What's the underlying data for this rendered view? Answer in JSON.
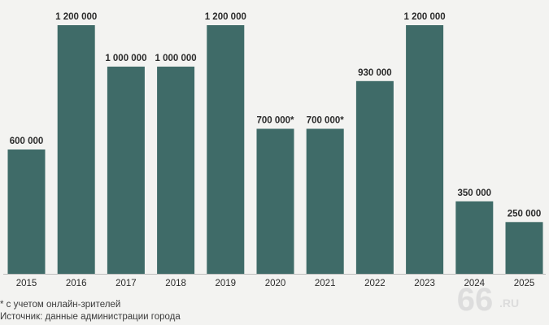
{
  "chart_data": {
    "type": "bar",
    "categories": [
      "2015",
      "2016",
      "2017",
      "2018",
      "2019",
      "2020",
      "2021",
      "2022",
      "2023",
      "2024",
      "2025"
    ],
    "values": [
      600000,
      1200000,
      1000000,
      1000000,
      1200000,
      700000,
      700000,
      930000,
      1200000,
      350000,
      250000
    ],
    "data_labels": [
      "600 000",
      "1 200 000",
      "1 000 000",
      "1 000 000",
      "1 200 000",
      "700 000*",
      "700 000*",
      "930 000",
      "1 200 000",
      "350 000",
      "250 000"
    ],
    "ylim": [
      0,
      1200000
    ],
    "grid": false,
    "title": "",
    "xlabel": "",
    "ylabel": ""
  },
  "colors": {
    "bar": "#3f6b68",
    "background": "#f3f3f1",
    "text": "#2b2b2b",
    "watermark": "#d9d9d9"
  },
  "footnotes": {
    "asterisk": "* с учетом онлайн-зрителей",
    "source": "Источник: данные администрации города"
  },
  "watermark": {
    "text": "66",
    "suffix": ".RU"
  }
}
